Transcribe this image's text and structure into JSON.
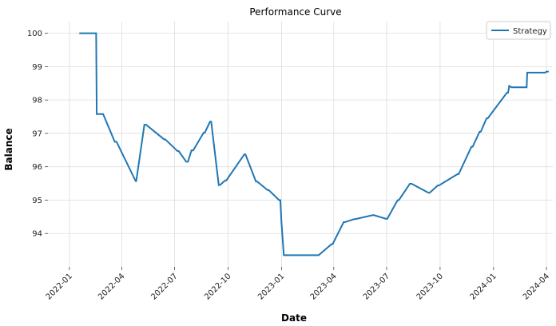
{
  "chart_data": {
    "type": "line",
    "title": "Performance Curve",
    "xlabel": "Date",
    "ylabel": "Balance",
    "x_range": [
      "2021-11-25",
      "2024-04-12"
    ],
    "ylim": [
      93.0,
      100.35
    ],
    "grid": true,
    "legend_position": "top-right",
    "x_ticks": [
      {
        "date": "2022-01-01",
        "label": "2022-01"
      },
      {
        "date": "2022-04-01",
        "label": "2022-04"
      },
      {
        "date": "2022-07-01",
        "label": "2022-07"
      },
      {
        "date": "2022-10-01",
        "label": "2022-10"
      },
      {
        "date": "2023-01-01",
        "label": "2023-01"
      },
      {
        "date": "2023-04-01",
        "label": "2023-04"
      },
      {
        "date": "2023-07-01",
        "label": "2023-07"
      },
      {
        "date": "2023-10-01",
        "label": "2023-10"
      },
      {
        "date": "2024-01-01",
        "label": "2024-01"
      },
      {
        "date": "2024-04-01",
        "label": "2024-04"
      }
    ],
    "y_ticks": [
      94,
      95,
      96,
      97,
      98,
      99,
      100
    ],
    "series": [
      {
        "name": "Strategy",
        "color": "#1f77b4",
        "x": [
          "2022-01-18",
          "2022-02-16",
          "2022-02-17",
          "2022-02-27",
          "2022-02-28",
          "2022-03-20",
          "2022-03-23",
          "2022-04-25",
          "2022-04-26",
          "2022-05-10",
          "2022-05-13",
          "2022-06-13",
          "2022-06-15",
          "2022-07-06",
          "2022-07-08",
          "2022-07-21",
          "2022-07-24",
          "2022-07-30",
          "2022-08-02",
          "2022-08-20",
          "2022-08-22",
          "2022-08-31",
          "2022-09-02",
          "2022-09-15",
          "2022-09-17",
          "2022-09-26",
          "2022-09-28",
          "2022-10-29",
          "2022-10-31",
          "2022-11-18",
          "2022-11-20",
          "2022-12-08",
          "2022-12-10",
          "2022-12-28",
          "2022-12-30",
          "2023-01-01",
          "2023-01-05",
          "2023-03-05",
          "2023-03-06",
          "2023-03-28",
          "2023-03-30",
          "2023-04-18",
          "2023-04-20",
          "2023-05-06",
          "2023-05-08",
          "2023-06-07",
          "2023-06-09",
          "2023-06-30",
          "2023-07-02",
          "2023-07-20",
          "2023-07-22",
          "2023-08-10",
          "2023-08-13",
          "2023-09-11",
          "2023-09-13",
          "2023-09-27",
          "2023-09-29",
          "2023-10-31",
          "2023-11-02",
          "2023-11-24",
          "2023-11-26",
          "2023-12-08",
          "2023-12-10",
          "2023-12-20",
          "2023-12-22",
          "2024-01-24",
          "2024-01-26",
          "2024-01-28",
          "2024-02-01",
          "2024-02-27",
          "2024-02-28",
          "2024-03-30",
          "2024-04-01",
          "2024-04-05"
        ],
        "values": [
          100.0,
          100.0,
          97.58,
          97.58,
          97.58,
          96.75,
          96.75,
          95.57,
          95.57,
          97.26,
          97.26,
          96.82,
          96.82,
          96.47,
          96.47,
          96.15,
          96.15,
          96.49,
          96.49,
          97.02,
          97.02,
          97.35,
          97.35,
          95.45,
          95.45,
          95.59,
          95.59,
          96.37,
          96.37,
          95.56,
          95.56,
          95.3,
          95.3,
          95.0,
          95.0,
          94.33,
          93.35,
          93.35,
          93.35,
          93.68,
          93.68,
          94.34,
          94.34,
          94.43,
          94.43,
          94.55,
          94.55,
          94.44,
          94.44,
          95.0,
          95.0,
          95.49,
          95.49,
          95.22,
          95.22,
          95.44,
          95.44,
          95.78,
          95.78,
          96.6,
          96.6,
          97.05,
          97.05,
          97.45,
          97.45,
          98.22,
          98.22,
          98.42,
          98.38,
          98.38,
          98.82,
          98.82,
          98.85,
          98.85
        ]
      }
    ]
  }
}
